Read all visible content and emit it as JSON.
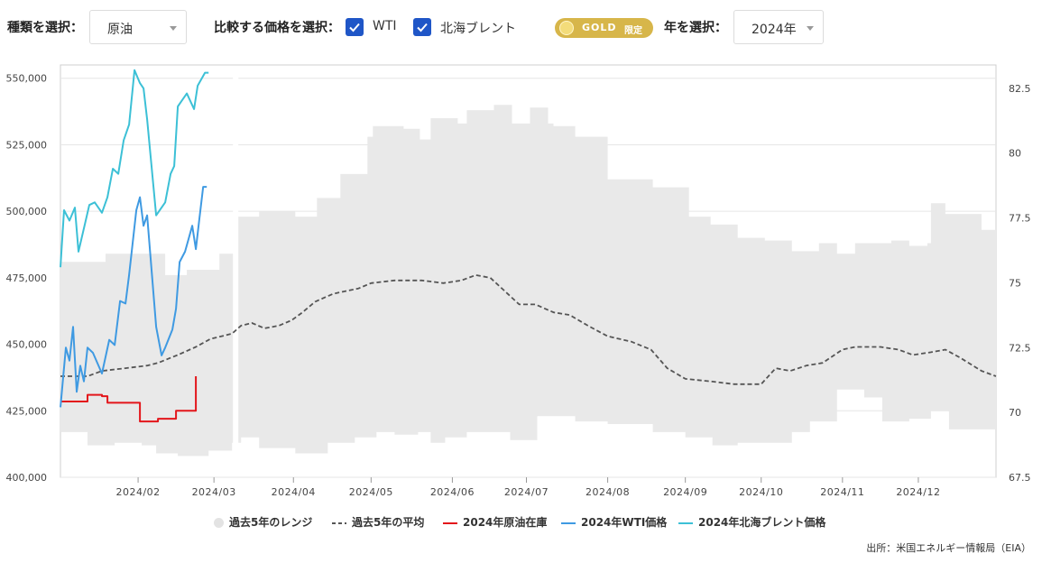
{
  "controls": {
    "type_label": "種類を選択：",
    "type_value": "原油",
    "compare_label": "比較する価格を選択：",
    "cb_wti": "WTI",
    "cb_brent": "北海ブレント",
    "badge_gold": "GOLD",
    "badge_limited": "限定",
    "year_label": "年を選択：",
    "year_value": "2024年"
  },
  "legend": {
    "range": "過去5年のレンジ",
    "avg": "過去5年の平均",
    "stock": "2024年原油在庫",
    "wti": "2024年WTI価格",
    "brent": "2024年北海ブレント価格"
  },
  "source": "出所：米国エネルギー情報局（EIA）",
  "colors": {
    "range": "#e9e9e9",
    "avg": "#555555",
    "stock": "#e3161b",
    "wti": "#3f9ae2",
    "brent": "#3cc0d6"
  },
  "chart_data": {
    "type": "line",
    "left_axis": {
      "ylim": [
        400000,
        555000
      ],
      "ticks": [
        "400,000",
        "425,000",
        "450,000",
        "475,000",
        "500,000",
        "525,000",
        "550,000"
      ]
    },
    "right_axis": {
      "ylim": [
        67.5,
        83.4
      ],
      "ticks": [
        "67.5",
        "70",
        "72.5",
        "75",
        "77.5",
        "80",
        "82.5"
      ]
    },
    "x_ticks": [
      {
        "label": "2024/02",
        "week": 4.3
      },
      {
        "label": "2024/03",
        "week": 8.5
      },
      {
        "label": "2024/04",
        "week": 12.9
      },
      {
        "label": "2024/05",
        "week": 17.2
      },
      {
        "label": "2024/06",
        "week": 21.7
      },
      {
        "label": "2024/07",
        "week": 25.8
      },
      {
        "label": "2024/08",
        "week": 30.3
      },
      {
        "label": "2024/09",
        "week": 34.6
      },
      {
        "label": "2024/10",
        "week": 38.8
      },
      {
        "label": "2024/11",
        "week": 43.3
      },
      {
        "label": "2024/12",
        "week": 47.5
      }
    ],
    "x_range": [
      0,
      51.8
    ],
    "range_high": [
      [
        0,
        481
      ],
      [
        1.5,
        481
      ],
      [
        2.5,
        484
      ],
      [
        4.5,
        484
      ],
      [
        5.8,
        476
      ],
      [
        7,
        478
      ],
      [
        8.8,
        484
      ],
      [
        9.7,
        498
      ],
      [
        11,
        500
      ],
      [
        13,
        498
      ],
      [
        14.2,
        505
      ],
      [
        15.5,
        514
      ],
      [
        17,
        528
      ],
      [
        17.3,
        532
      ],
      [
        19,
        531
      ],
      [
        19.9,
        527
      ],
      [
        20.5,
        535
      ],
      [
        22,
        533
      ],
      [
        22.5,
        538
      ],
      [
        24,
        540
      ],
      [
        25,
        533
      ],
      [
        26,
        539
      ],
      [
        27,
        533
      ],
      [
        27.3,
        532
      ],
      [
        28.5,
        528
      ],
      [
        30.3,
        512
      ],
      [
        32.8,
        509
      ],
      [
        34.8,
        498
      ],
      [
        36,
        495
      ],
      [
        37.5,
        490
      ],
      [
        39,
        489
      ],
      [
        40.5,
        485
      ],
      [
        42,
        488
      ],
      [
        43,
        484
      ],
      [
        44,
        488
      ],
      [
        46,
        489
      ],
      [
        47,
        487
      ],
      [
        48,
        488
      ],
      [
        48.2,
        503
      ],
      [
        49,
        499
      ],
      [
        51,
        496
      ],
      [
        51,
        493
      ],
      [
        51.8,
        493
      ]
    ],
    "range_low": [
      [
        0,
        417
      ],
      [
        1.5,
        412
      ],
      [
        3,
        413
      ],
      [
        4.5,
        412
      ],
      [
        5.3,
        409
      ],
      [
        6.5,
        408
      ],
      [
        8.2,
        410
      ],
      [
        9.5,
        413
      ],
      [
        10,
        415
      ],
      [
        11,
        411
      ],
      [
        13,
        409
      ],
      [
        14.8,
        413
      ],
      [
        16.3,
        415
      ],
      [
        17.5,
        417
      ],
      [
        18.5,
        416
      ],
      [
        19.8,
        417
      ],
      [
        20.5,
        413
      ],
      [
        21.3,
        415
      ],
      [
        22.5,
        417
      ],
      [
        23.8,
        417
      ],
      [
        24.9,
        414
      ],
      [
        26.4,
        423
      ],
      [
        28.5,
        421
      ],
      [
        30.3,
        420
      ],
      [
        32.8,
        417
      ],
      [
        34.6,
        415
      ],
      [
        36.1,
        412
      ],
      [
        37.5,
        413
      ],
      [
        39,
        413
      ],
      [
        40.5,
        417
      ],
      [
        41.5,
        421
      ],
      [
        43,
        433
      ],
      [
        44.5,
        430
      ],
      [
        45.5,
        421
      ],
      [
        47,
        422
      ],
      [
        48.2,
        425
      ],
      [
        49.2,
        418
      ],
      [
        51,
        418
      ],
      [
        51.8,
        418
      ]
    ],
    "series": [
      {
        "name": "過去5年の平均",
        "axis": "left",
        "points": [
          [
            0,
            438
          ],
          [
            1.5,
            438
          ],
          [
            2.3,
            440
          ],
          [
            3.6,
            441
          ],
          [
            4.8,
            442
          ],
          [
            5.4,
            443
          ],
          [
            6.5,
            446
          ],
          [
            7.5,
            449
          ],
          [
            8.3,
            452
          ],
          [
            9.5,
            454
          ],
          [
            10,
            457
          ],
          [
            10.6,
            458
          ],
          [
            11.3,
            456
          ],
          [
            12.1,
            457
          ],
          [
            12.8,
            459
          ],
          [
            13.4,
            462
          ],
          [
            14.1,
            466
          ],
          [
            15.1,
            469
          ],
          [
            16.5,
            471
          ],
          [
            17.2,
            473
          ],
          [
            18.5,
            474
          ],
          [
            20,
            474
          ],
          [
            21.2,
            473
          ],
          [
            22.2,
            474
          ],
          [
            23,
            476
          ],
          [
            23.8,
            475
          ],
          [
            24.6,
            470
          ],
          [
            25.4,
            465
          ],
          [
            26.3,
            465
          ],
          [
            27.3,
            462
          ],
          [
            28.2,
            461
          ],
          [
            29.2,
            457
          ],
          [
            30.3,
            453
          ],
          [
            31.6,
            451
          ],
          [
            32.7,
            448
          ],
          [
            33.6,
            441
          ],
          [
            34.6,
            437
          ],
          [
            36.1,
            436
          ],
          [
            37.3,
            435
          ],
          [
            38.8,
            435
          ],
          [
            39.6,
            441
          ],
          [
            40.4,
            440
          ],
          [
            41.3,
            442
          ],
          [
            42.2,
            443
          ],
          [
            43.3,
            448
          ],
          [
            44,
            449
          ],
          [
            45.4,
            449
          ],
          [
            46.4,
            448
          ],
          [
            47.2,
            446
          ],
          [
            48.2,
            447
          ],
          [
            49,
            448
          ],
          [
            49.8,
            445
          ],
          [
            51,
            440
          ],
          [
            51.8,
            438
          ]
        ]
      },
      {
        "name": "2024年原油在庫",
        "axis": "left",
        "points": [
          [
            0,
            428.5
          ],
          [
            1.5,
            431
          ],
          [
            2.3,
            430.5
          ],
          [
            2.6,
            428
          ],
          [
            4.4,
            421
          ],
          [
            5.4,
            422
          ],
          [
            6.4,
            425
          ],
          [
            7.5,
            438
          ]
        ]
      },
      {
        "name": "2024年WTI価格",
        "axis": "right",
        "points": [
          [
            0,
            70.2
          ],
          [
            0.3,
            72.5
          ],
          [
            0.5,
            72
          ],
          [
            0.7,
            73.3
          ],
          [
            0.9,
            70.8
          ],
          [
            1.1,
            71.8
          ],
          [
            1.3,
            71.2
          ],
          [
            1.5,
            72.5
          ],
          [
            1.8,
            72.3
          ],
          [
            2.3,
            71.5
          ],
          [
            2.7,
            72.8
          ],
          [
            3.0,
            72.6
          ],
          [
            3.3,
            74.3
          ],
          [
            3.6,
            74.2
          ],
          [
            3.8,
            75.3
          ],
          [
            4.2,
            77.8
          ],
          [
            4.4,
            78.3
          ],
          [
            4.6,
            77.2
          ],
          [
            4.8,
            77.6
          ],
          [
            5.3,
            73.3
          ],
          [
            5.6,
            72.2
          ],
          [
            5.8,
            72.5
          ],
          [
            6.2,
            73.2
          ],
          [
            6.4,
            74.0
          ],
          [
            6.6,
            75.8
          ],
          [
            6.9,
            76.2
          ],
          [
            7.1,
            76.7
          ],
          [
            7.3,
            77.2
          ],
          [
            7.5,
            76.3
          ],
          [
            7.7,
            77.5
          ],
          [
            7.9,
            78.7
          ],
          [
            8.1,
            78.7
          ]
        ]
      },
      {
        "name": "2024年北海ブレント価格",
        "axis": "right",
        "points": [
          [
            0,
            75.6
          ],
          [
            0.2,
            77.8
          ],
          [
            0.5,
            77.4
          ],
          [
            0.8,
            77.9
          ],
          [
            1.0,
            76.2
          ],
          [
            1.3,
            77.1
          ],
          [
            1.6,
            78.0
          ],
          [
            1.9,
            78.1
          ],
          [
            2.3,
            77.7
          ],
          [
            2.6,
            78.3
          ],
          [
            2.9,
            79.4
          ],
          [
            3.2,
            79.2
          ],
          [
            3.5,
            80.5
          ],
          [
            3.8,
            81.1
          ],
          [
            4.1,
            83.2
          ],
          [
            4.4,
            82.7
          ],
          [
            4.6,
            82.5
          ],
          [
            4.8,
            81.3
          ],
          [
            5.3,
            77.6
          ],
          [
            5.8,
            78.1
          ],
          [
            6.1,
            79.2
          ],
          [
            6.3,
            79.5
          ],
          [
            6.5,
            81.8
          ],
          [
            6.7,
            82.0
          ],
          [
            7.0,
            82.3
          ],
          [
            7.4,
            81.7
          ],
          [
            7.6,
            82.6
          ],
          [
            8.0,
            83.1
          ],
          [
            8.2,
            83.1
          ]
        ]
      }
    ]
  }
}
